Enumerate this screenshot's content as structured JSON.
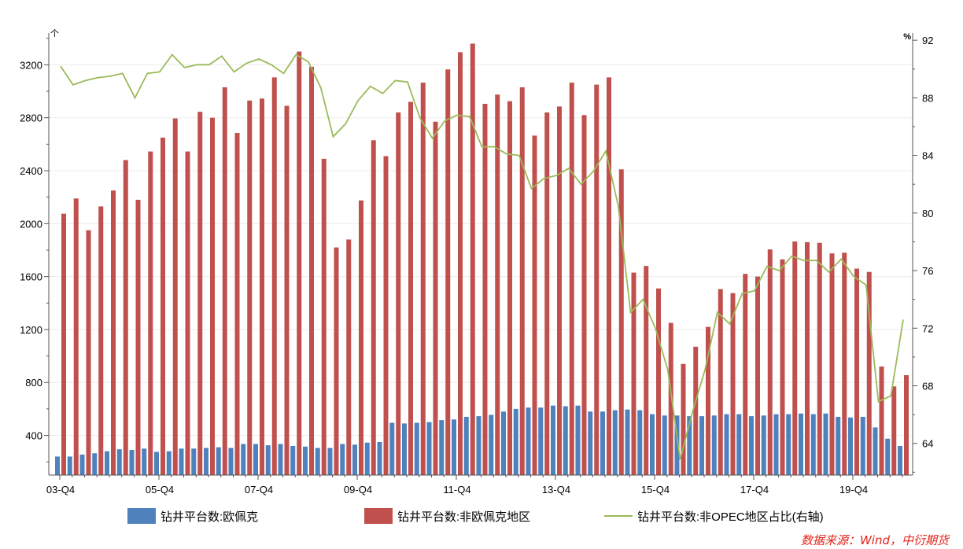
{
  "chart_data": {
    "type": "bar",
    "categories": [
      "03-Q4",
      "04-Q1",
      "04-Q2",
      "04-Q3",
      "04-Q4",
      "05-Q1",
      "05-Q2",
      "05-Q3",
      "05-Q4",
      "06-Q1",
      "06-Q2",
      "06-Q3",
      "06-Q4",
      "07-Q1",
      "07-Q2",
      "07-Q3",
      "07-Q4",
      "08-Q1",
      "08-Q2",
      "08-Q3",
      "08-Q4",
      "09-Q1",
      "09-Q2",
      "09-Q3",
      "09-Q4",
      "10-Q1",
      "10-Q2",
      "10-Q3",
      "10-Q4",
      "11-Q1",
      "11-Q2",
      "11-Q3",
      "11-Q4",
      "12-Q1",
      "12-Q2",
      "12-Q3",
      "12-Q4",
      "13-Q1",
      "13-Q2",
      "13-Q3",
      "13-Q4",
      "14-Q1",
      "14-Q2",
      "14-Q3",
      "14-Q4",
      "15-Q1",
      "15-Q2",
      "15-Q3",
      "15-Q4",
      "16-Q1",
      "16-Q2",
      "16-Q3",
      "16-Q4",
      "17-Q1",
      "17-Q2",
      "17-Q3",
      "17-Q4",
      "18-Q1",
      "18-Q2",
      "18-Q3",
      "18-Q4",
      "19-Q1",
      "19-Q2",
      "19-Q3",
      "19-Q4",
      "20-Q1",
      "20-Q2",
      "20-Q3",
      "20-Q4"
    ],
    "x_tick_labels": [
      "03-Q4",
      "05-Q4",
      "07-Q4",
      "09-Q4",
      "11-Q4",
      "13-Q4",
      "15-Q4",
      "17-Q4",
      "19-Q4"
    ],
    "series": [
      {
        "name": "钻井平台数:欧佩克",
        "axis": "left",
        "color": "#4f81bd",
        "values": [
          240,
          240,
          255,
          265,
          280,
          295,
          290,
          300,
          275,
          280,
          300,
          300,
          305,
          310,
          305,
          335,
          335,
          325,
          335,
          320,
          315,
          305,
          305,
          335,
          330,
          345,
          350,
          495,
          490,
          495,
          500,
          515,
          520,
          540,
          545,
          555,
          580,
          600,
          610,
          610,
          625,
          620,
          625,
          580,
          580,
          590,
          595,
          590,
          560,
          550,
          550,
          545,
          545,
          550,
          560,
          560,
          545,
          550,
          560,
          560,
          565,
          560,
          565,
          540,
          535,
          540,
          460,
          375,
          320
        ]
      },
      {
        "name": "钻井平台数:非欧佩克地区",
        "axis": "left",
        "color": "#c0504d",
        "values": [
          2075,
          2190,
          1950,
          2130,
          2250,
          2480,
          2180,
          2545,
          2650,
          2795,
          2545,
          2845,
          2800,
          3030,
          2685,
          2930,
          2945,
          3105,
          2890,
          3300,
          3185,
          2490,
          1820,
          1880,
          2175,
          2630,
          2510,
          2840,
          2920,
          3065,
          2770,
          3165,
          3295,
          3360,
          2905,
          2975,
          2925,
          3030,
          2665,
          2840,
          2885,
          3065,
          2820,
          3050,
          3105,
          2410,
          1630,
          1680,
          1510,
          1250,
          940,
          1070,
          1220,
          1505,
          1475,
          1620,
          1600,
          1805,
          1730,
          1865,
          1860,
          1855,
          1775,
          1780,
          1660,
          1635,
          920,
          770,
          855
        ]
      },
      {
        "name": "钻井平台数:非OPEC地区占比(右轴)",
        "axis": "right",
        "type": "line",
        "color": "#9bbb59",
        "values": [
          90.2,
          88.9,
          89.2,
          89.4,
          89.5,
          89.7,
          88.0,
          89.7,
          89.8,
          91.0,
          90.1,
          90.3,
          90.3,
          90.9,
          89.8,
          90.4,
          90.7,
          90.3,
          89.7,
          91.0,
          90.5,
          88.7,
          85.3,
          86.2,
          87.8,
          88.8,
          88.3,
          89.2,
          89.1,
          86.6,
          85.2,
          86.4,
          86.8,
          86.7,
          84.6,
          84.6,
          84.1,
          84.0,
          81.7,
          82.4,
          82.6,
          83.1,
          82.0,
          82.9,
          84.3,
          80.5,
          73.1,
          74.0,
          72.0,
          69.1,
          62.9,
          66.2,
          69.1,
          73.1,
          72.3,
          74.4,
          74.6,
          76.3,
          76.0,
          77.0,
          76.7,
          76.7,
          75.9,
          76.8,
          75.6,
          75.0,
          66.9,
          67.3,
          72.6
        ]
      }
    ],
    "y_left": {
      "unit": "个",
      "ticks": [
        400,
        800,
        1200,
        1600,
        2000,
        2400,
        2800,
        3200
      ],
      "ylim": [
        100,
        3440
      ]
    },
    "y_right": {
      "unit": "%",
      "ticks": [
        64,
        68,
        72,
        76,
        80,
        84,
        88,
        92
      ],
      "ylim": [
        61.8,
        92.5
      ]
    },
    "grid": true,
    "legend_position": "bottom"
  },
  "source_text": "数据来源：Wind，中衍期货"
}
